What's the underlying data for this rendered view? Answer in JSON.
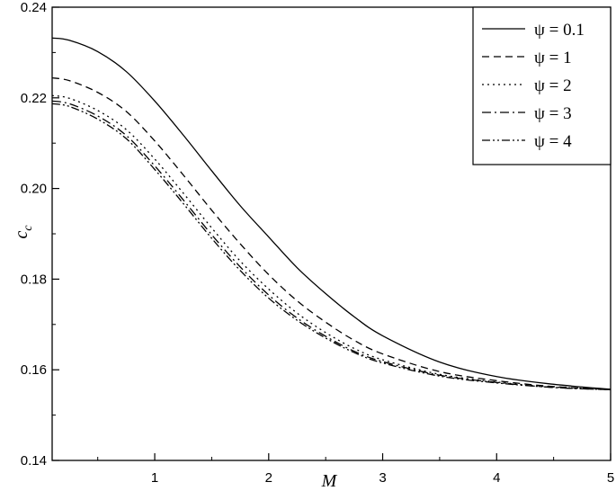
{
  "chart_data": {
    "type": "line",
    "xlabel": "M",
    "ylabel": "c",
    "ylabel_subscript": "c",
    "xlim": [
      0.1,
      5
    ],
    "ylim": [
      0.14,
      0.24
    ],
    "xticks": [
      1,
      2,
      3,
      4,
      5
    ],
    "yticks": [
      0.14,
      0.16,
      0.18,
      0.2,
      0.22,
      0.24
    ],
    "ytick_labels": [
      "0.14",
      "0.16",
      "0.18",
      "0.20",
      "0.22",
      "0.24"
    ],
    "grid": false,
    "legend_position": "top-right",
    "x": [
      0.1,
      0.25,
      0.5,
      0.75,
      1.0,
      1.25,
      1.5,
      1.75,
      2.0,
      2.25,
      2.5,
      2.75,
      3.0,
      3.5,
      4.0,
      4.5,
      5.0
    ],
    "series": [
      {
        "name": "ψ = 0.1",
        "dash": "solid",
        "values": [
          0.2332,
          0.2327,
          0.2302,
          0.2258,
          0.2193,
          0.2118,
          0.2039,
          0.1962,
          0.1893,
          0.1825,
          0.1768,
          0.1717,
          0.1675,
          0.1617,
          0.1585,
          0.1568,
          0.1557
        ]
      },
      {
        "name": "ψ = 1",
        "dash": "dash",
        "values": [
          0.2244,
          0.2238,
          0.2212,
          0.217,
          0.2105,
          0.203,
          0.1952,
          0.1878,
          0.181,
          0.1752,
          0.1705,
          0.1665,
          0.1635,
          0.1596,
          0.1576,
          0.1563,
          0.1557
        ]
      },
      {
        "name": "ψ = 2",
        "dash": "dot",
        "values": [
          0.2205,
          0.2199,
          0.2172,
          0.213,
          0.2065,
          0.199,
          0.1913,
          0.184,
          0.1778,
          0.1725,
          0.1682,
          0.1647,
          0.1622,
          0.159,
          0.1573,
          0.1562,
          0.1557
        ]
      },
      {
        "name": "ψ = 3",
        "dash": "dashdot",
        "values": [
          0.2193,
          0.2187,
          0.216,
          0.2117,
          0.205,
          0.1975,
          0.1898,
          0.1827,
          0.1765,
          0.1714,
          0.1674,
          0.1641,
          0.1618,
          0.1588,
          0.1572,
          0.1561,
          0.1556
        ]
      },
      {
        "name": "ψ = 4",
        "dash": "dashdotdot",
        "values": [
          0.2187,
          0.2181,
          0.2153,
          0.211,
          0.2042,
          0.1967,
          0.189,
          0.1819,
          0.1758,
          0.1709,
          0.167,
          0.1638,
          0.1615,
          0.1586,
          0.1571,
          0.1561,
          0.1556
        ]
      }
    ]
  }
}
